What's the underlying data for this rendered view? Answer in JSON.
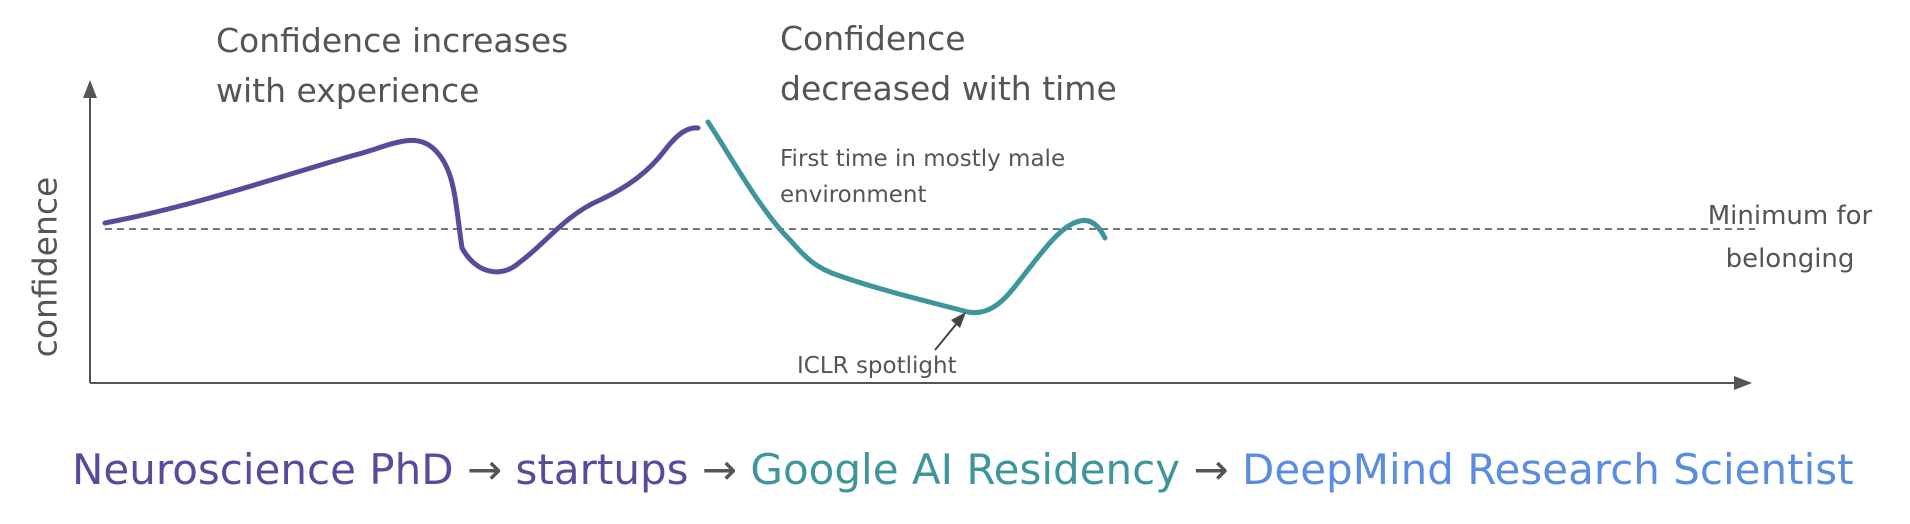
{
  "annotations": {
    "increase_line1": "Confidence increases",
    "increase_line2": "with experience",
    "decrease_line1": "Confidence",
    "decrease_line2": "decreased with time",
    "male_env_line1": "First time in mostly male",
    "male_env_line2": "environment",
    "iclr": "ICLR spotlight",
    "threshold_line1": "Minimum for",
    "threshold_line2": "belonging"
  },
  "axis": {
    "y_label": "confidence"
  },
  "career_path": {
    "stage1": "Neuroscience PhD",
    "sep1": "→",
    "stage2": "startups",
    "sep2": "→",
    "stage3": "Google AI Residency",
    "sep3": "→",
    "stage4": "DeepMind Research Scientist"
  },
  "colors": {
    "purple": "#5b4a9b",
    "teal": "#3e959b",
    "blue": "#5a8de0",
    "axis": "#555555"
  }
}
